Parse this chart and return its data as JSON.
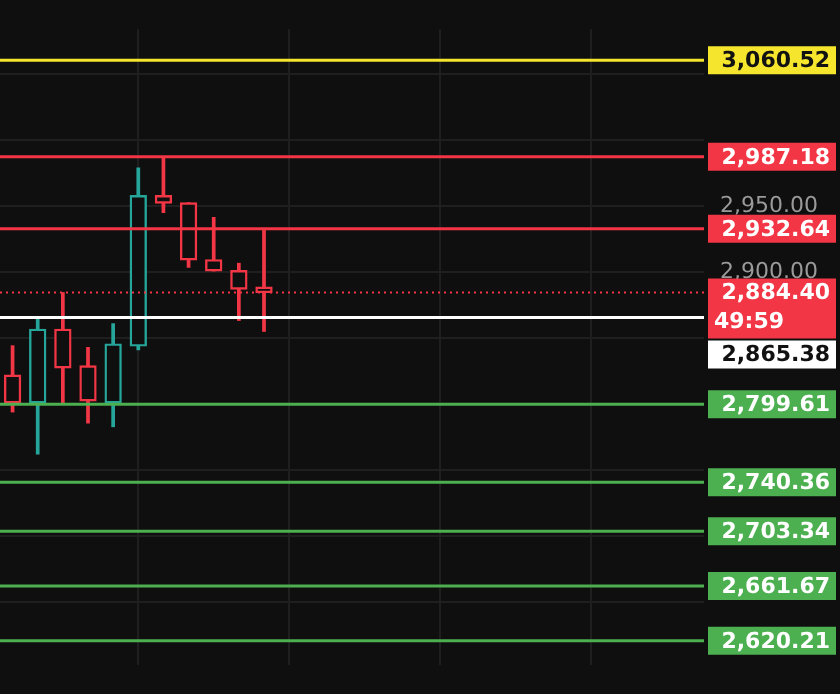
{
  "chart_data": {
    "type": "candlestick",
    "categories": [
      null,
      null,
      null,
      null,
      null,
      null,
      null,
      null,
      null,
      null,
      null,
      null,
      null,
      null,
      null,
      null,
      null,
      null,
      null,
      null,
      null,
      null,
      null,
      null,
      null,
      null,
      null,
      null
    ],
    "ohlc": [
      [
        2821.6,
        2843.8,
        2793.9,
        2800.8
      ],
      [
        2800.8,
        2866.1,
        2761.9,
        2856.4
      ],
      [
        2856.4,
        2884.1,
        2800.8,
        2827.2
      ],
      [
        2828.6,
        2842.5,
        2785.5,
        2802.2
      ],
      [
        2800.8,
        2860.5,
        2782.7,
        2845.2
      ],
      [
        2843.8,
        2978.6,
        2841.1,
        2957.7
      ],
      [
        2957.7,
        2986.9,
        2945.2,
        2952.2
      ],
      [
        2952.2,
        2952.2,
        2903.6,
        2909.1
      ],
      [
        2909.1,
        2941.1,
        2900.8,
        2900.8
      ],
      [
        2900.8,
        2906.3,
        2863.3,
        2886.9
      ],
      [
        2888.3,
        2932.8,
        2855.0,
        2884.4
      ],
      null,
      null,
      null,
      null,
      null,
      null,
      null,
      null,
      null,
      null,
      null,
      null,
      null,
      null,
      null,
      null,
      null
    ],
    "colors": [
      "#f23645",
      "#26a69a",
      "#f23645",
      "#f23645",
      "#26a69a",
      "#26a69a",
      "#f23645",
      "#f23645",
      "#f23645",
      "#f23645",
      "#f23645",
      null,
      null,
      null,
      null,
      null,
      null,
      null,
      null,
      null,
      null,
      null,
      null,
      null,
      null,
      null,
      null,
      null
    ],
    "ylim": [
      2602,
      3084
    ],
    "yticks": [
      {
        "value": 2650,
        "label": null
      },
      {
        "value": 2700,
        "label": null
      },
      {
        "value": 2750,
        "label": null
      },
      {
        "value": 2800,
        "label": null
      },
      {
        "value": 2850,
        "label": null
      },
      {
        "value": 2900,
        "label": "2,900.00"
      },
      {
        "value": 2950,
        "label": "2,950.00"
      },
      {
        "value": 3000,
        "label": null
      },
      {
        "value": 3050,
        "label": null
      }
    ],
    "grid": true,
    "ref_lines": [
      {
        "axis": "y",
        "value": 3060.52,
        "label": "3,060.52",
        "color": "#f5e52d"
      },
      {
        "axis": "y",
        "value": 2987.18,
        "label": "2,987.18",
        "color": "#f23645"
      },
      {
        "axis": "y",
        "value": 2932.64,
        "label": "2,932.64",
        "color": "#f23645"
      },
      {
        "axis": "y",
        "value": 2884.4,
        "label": "2,884.40",
        "color": "#f23645",
        "line_style": "dotted"
      },
      {
        "axis": "y",
        "value": 2865.38,
        "label": "2,865.38",
        "color": "#ffffff"
      },
      {
        "axis": "y",
        "value": 2799.61,
        "label": "2,799.61",
        "color": "#4caf50"
      },
      {
        "axis": "y",
        "value": 2740.36,
        "label": "2,740.36",
        "color": "#4caf50"
      },
      {
        "axis": "y",
        "value": 2703.34,
        "label": "2,703.34",
        "color": "#4caf50"
      },
      {
        "axis": "y",
        "value": 2661.67,
        "label": "2,661.67",
        "color": "#4caf50"
      },
      {
        "axis": "y",
        "value": 2620.21,
        "label": "2,620.21",
        "color": "#4caf50"
      }
    ],
    "annotations": [
      "49:59"
    ]
  }
}
